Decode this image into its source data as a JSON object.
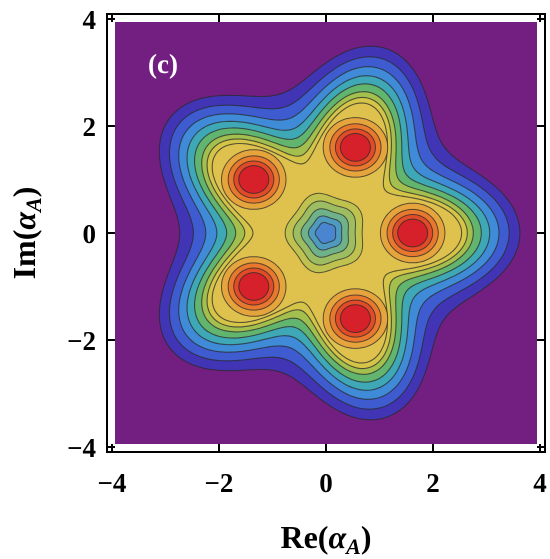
{
  "chart_data": {
    "type": "contour",
    "panel_label": "(c)",
    "xlabel": "Re(αA)",
    "ylabel": "Im(αA)",
    "xlim": [
      -4,
      4
    ],
    "ylim": [
      -4,
      4
    ],
    "x_ticks": [
      -4,
      -2,
      0,
      2,
      4
    ],
    "y_ticks": [
      -4,
      -2,
      0,
      2,
      4
    ],
    "x_tick_labels": [
      "−4",
      "−2",
      "0",
      "2",
      "4"
    ],
    "y_tick_labels": [
      "−4",
      "−2",
      "0",
      "2",
      "4"
    ],
    "grid": false,
    "central_peak": {
      "x": 0,
      "y": 0
    },
    "peaks": [
      {
        "x": 1.62,
        "y": 0.0
      },
      {
        "x": 0.55,
        "y": 1.6
      },
      {
        "x": -1.35,
        "y": 1.0
      },
      {
        "x": -1.35,
        "y": -1.0
      },
      {
        "x": 0.55,
        "y": -1.6
      }
    ],
    "colors": {
      "background": "#731f82",
      "levels": [
        "#4135b5",
        "#3e5cd0",
        "#3f8bd8",
        "#3fa8b6",
        "#62b56e",
        "#a3c04e",
        "#d4c548",
        "#dfc24e",
        "#e6a43c",
        "#e7782d",
        "#e24b28",
        "#d6202a"
      ],
      "center_blue": "#4a86d0"
    }
  }
}
